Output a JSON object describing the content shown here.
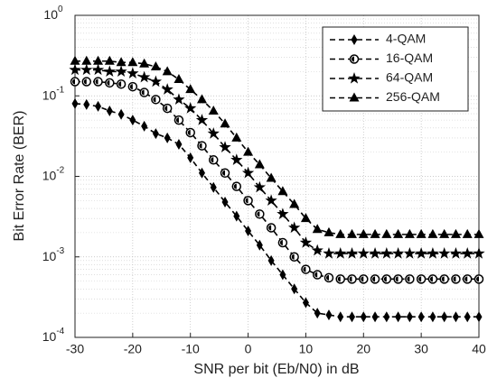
{
  "chart_data": {
    "type": "line",
    "xlabel": "SNR per bit (Eb/N0) in dB",
    "ylabel": "Bit Error Rate (BER)",
    "x": [
      -30,
      -28,
      -26,
      -24,
      -22,
      -20,
      -18,
      -16,
      -14,
      -12,
      -10,
      -8,
      -6,
      -4,
      -2,
      0,
      2,
      4,
      6,
      8,
      10,
      12,
      14,
      16,
      18,
      20,
      22,
      24,
      26,
      28,
      30,
      32,
      34,
      36,
      38,
      40
    ],
    "series": [
      {
        "name": "4-QAM",
        "color": "#000000",
        "marker": "diamond",
        "values": [
          0.08,
          0.078,
          0.074,
          0.065,
          0.059,
          0.05,
          0.042,
          0.034,
          0.03,
          0.025,
          0.017,
          0.011,
          0.0073,
          0.0048,
          0.0032,
          0.0021,
          0.0014,
          0.0009,
          0.0006,
          0.0004,
          0.00027,
          0.0002,
          0.00019,
          0.00018,
          0.00018,
          0.00018,
          0.00018,
          0.00018,
          0.00018,
          0.00018,
          0.00018,
          0.00018,
          0.00018,
          0.00018,
          0.00018,
          0.00018
        ]
      },
      {
        "name": "16-QAM",
        "color": "#000000",
        "marker": "circle",
        "values": [
          0.15,
          0.15,
          0.15,
          0.145,
          0.14,
          0.13,
          0.11,
          0.09,
          0.07,
          0.05,
          0.035,
          0.024,
          0.016,
          0.011,
          0.0075,
          0.005,
          0.0034,
          0.0023,
          0.0015,
          0.001,
          0.0007,
          0.0006,
          0.00055,
          0.00053,
          0.00053,
          0.00053,
          0.00053,
          0.00053,
          0.00053,
          0.00053,
          0.00053,
          0.00053,
          0.00053,
          0.00053,
          0.00053,
          0.00053
        ]
      },
      {
        "name": "64-QAM",
        "color": "#000000",
        "marker": "star",
        "values": [
          0.21,
          0.21,
          0.21,
          0.2,
          0.2,
          0.19,
          0.17,
          0.15,
          0.12,
          0.09,
          0.07,
          0.05,
          0.034,
          0.023,
          0.016,
          0.011,
          0.0073,
          0.005,
          0.0034,
          0.0023,
          0.0015,
          0.0012,
          0.0011,
          0.0011,
          0.0011,
          0.0011,
          0.0011,
          0.0011,
          0.0011,
          0.0011,
          0.0011,
          0.0011,
          0.0011,
          0.0011,
          0.0011,
          0.0011
        ]
      },
      {
        "name": "256-QAM",
        "color": "#000000",
        "marker": "triangle",
        "values": [
          0.27,
          0.27,
          0.27,
          0.27,
          0.26,
          0.26,
          0.25,
          0.23,
          0.2,
          0.16,
          0.12,
          0.09,
          0.065,
          0.045,
          0.03,
          0.02,
          0.014,
          0.0095,
          0.0065,
          0.0045,
          0.003,
          0.0022,
          0.002,
          0.0019,
          0.0019,
          0.0019,
          0.0019,
          0.0019,
          0.0019,
          0.0019,
          0.0019,
          0.0019,
          0.0019,
          0.0019,
          0.0019,
          0.0019
        ]
      }
    ],
    "xlim": [
      -30,
      40
    ],
    "xticks": [
      -30,
      -20,
      -10,
      0,
      10,
      20,
      30,
      40
    ],
    "ylim": [
      0.0001,
      1
    ],
    "log_y": true,
    "yticks": [
      {
        "value": 0.0001,
        "label": "10",
        "exponent": "-4"
      },
      {
        "value": 0.001,
        "label": "10",
        "exponent": "-3"
      },
      {
        "value": 0.01,
        "label": "10",
        "exponent": "-2"
      },
      {
        "value": 0.1,
        "label": "10",
        "exponent": "-1"
      },
      {
        "value": 1,
        "label": "10",
        "exponent": "0"
      }
    ],
    "grid": true,
    "minor_grid": true,
    "line_style": "dashed",
    "legend": "northeast"
  }
}
